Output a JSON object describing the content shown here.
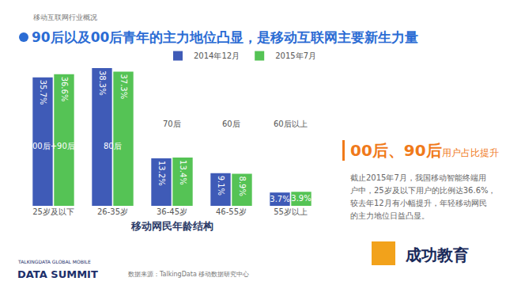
{
  "chart_data": {
    "type": "bar",
    "subtitle": "移动互联网行业概况",
    "title": "90后以及00后青年的主力地位凸显，是移动互联网主要新生力量",
    "x_label": "移动网民年龄结构",
    "categories": [
      "25岁及以下",
      "26-35岁",
      "36-45岁",
      "46-55岁",
      "55岁以上"
    ],
    "series": [
      {
        "name": "2014年12月",
        "color": "#3f5bb7",
        "values": [
          35.7,
          38.3,
          13.2,
          9.1,
          3.7
        ],
        "value_labels": [
          "35.7%",
          "38.3%",
          "13.2%",
          "9.1%",
          "3.7%"
        ]
      },
      {
        "name": "2015年7月",
        "color": "#55c355",
        "values": [
          36.6,
          37.3,
          13.4,
          8.9,
          3.9
        ],
        "value_labels": [
          "36.6%",
          "37.3%",
          "13.4%",
          "8.9%",
          "3.9%"
        ]
      }
    ],
    "ylim": [
      0,
      44
    ],
    "tick_labels": "x",
    "grid": false,
    "legend": "upper right",
    "data_labels": true,
    "annotations": {
      "group_labels": [
        "00后+90后",
        "80后",
        "70后",
        "60后",
        "60后以上"
      ],
      "highlight": "00后、90后",
      "highlight_suffix": "用户占比提升",
      "note": [
        "截止2015年7月，我国移动智能终端用",
        "户中，25岁及以下用户的比例达36.6%，",
        "较去年12月有小幅提升，年轻移动网民",
        "的主力地位日益凸显。"
      ],
      "brand_small": "TALKINGDATA GLOBAL MOBILE",
      "brand": "DATA SUMMIT",
      "source": "数据来源：TalkingData 移动数据研究中心",
      "watermark": "成功教育"
    }
  }
}
